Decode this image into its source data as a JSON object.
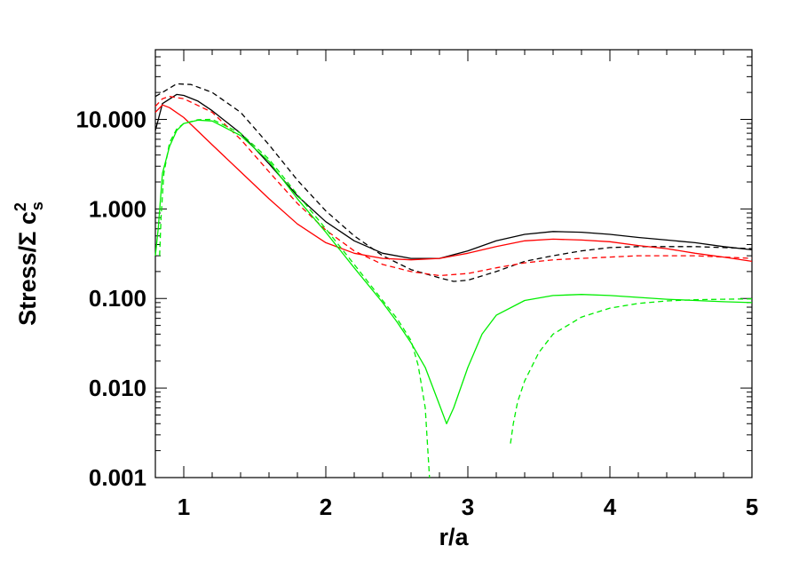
{
  "chart_data": {
    "type": "line",
    "xlabel": "r/a",
    "ylabel": {
      "main": "Stress/Σ c",
      "sup": "2",
      "sub": "s"
    },
    "xlim": [
      0.8,
      5.0
    ],
    "ylim": [
      0.001,
      60
    ],
    "yscale": "log",
    "grid": false,
    "x_ticks": [
      1,
      2,
      3,
      4,
      5
    ],
    "x_tick_labels": [
      "1",
      "2",
      "3",
      "4",
      "5"
    ],
    "y_ticks": [
      0.001,
      0.01,
      0.1,
      1,
      10
    ],
    "y_tick_labels": [
      "0.001",
      "0.010",
      "0.100",
      "1.000",
      "10.000"
    ],
    "series": [
      {
        "color": "#000000",
        "dash": "solid",
        "points": [
          [
            0.8,
            7.5
          ],
          [
            0.85,
            15
          ],
          [
            0.95,
            19
          ],
          [
            1.0,
            18.5
          ],
          [
            1.1,
            16
          ],
          [
            1.2,
            12.5
          ],
          [
            1.4,
            7
          ],
          [
            1.6,
            3.2
          ],
          [
            1.8,
            1.4
          ],
          [
            2.0,
            0.72
          ],
          [
            2.2,
            0.44
          ],
          [
            2.4,
            0.32
          ],
          [
            2.6,
            0.28
          ],
          [
            2.8,
            0.28
          ],
          [
            3.0,
            0.34
          ],
          [
            3.2,
            0.44
          ],
          [
            3.4,
            0.52
          ],
          [
            3.6,
            0.56
          ],
          [
            3.8,
            0.55
          ],
          [
            4.0,
            0.52
          ],
          [
            4.2,
            0.48
          ],
          [
            4.4,
            0.45
          ],
          [
            4.6,
            0.42
          ],
          [
            4.8,
            0.38
          ],
          [
            5.0,
            0.35
          ]
        ]
      },
      {
        "color": "#000000",
        "dash": "dashed",
        "points": [
          [
            0.8,
            18
          ],
          [
            0.85,
            20
          ],
          [
            0.95,
            25
          ],
          [
            1.05,
            24.5
          ],
          [
            1.2,
            20
          ],
          [
            1.4,
            12
          ],
          [
            1.6,
            5.2
          ],
          [
            1.8,
            2.1
          ],
          [
            2.0,
            0.95
          ],
          [
            2.2,
            0.5
          ],
          [
            2.4,
            0.3
          ],
          [
            2.6,
            0.21
          ],
          [
            2.8,
            0.17
          ],
          [
            2.9,
            0.155
          ],
          [
            3.0,
            0.16
          ],
          [
            3.2,
            0.2
          ],
          [
            3.4,
            0.26
          ],
          [
            3.6,
            0.3
          ],
          [
            3.8,
            0.34
          ],
          [
            4.0,
            0.37
          ],
          [
            4.2,
            0.38
          ],
          [
            4.4,
            0.38
          ],
          [
            4.6,
            0.38
          ],
          [
            4.8,
            0.37
          ],
          [
            5.0,
            0.36
          ]
        ]
      },
      {
        "color": "#ff0000",
        "dash": "solid",
        "points": [
          [
            0.8,
            12
          ],
          [
            0.85,
            14.5
          ],
          [
            0.9,
            13.5
          ],
          [
            1.0,
            10.5
          ],
          [
            1.2,
            5.2
          ],
          [
            1.4,
            2.6
          ],
          [
            1.6,
            1.3
          ],
          [
            1.8,
            0.68
          ],
          [
            2.0,
            0.42
          ],
          [
            2.2,
            0.32
          ],
          [
            2.4,
            0.28
          ],
          [
            2.6,
            0.27
          ],
          [
            2.8,
            0.28
          ],
          [
            3.0,
            0.32
          ],
          [
            3.2,
            0.38
          ],
          [
            3.4,
            0.44
          ],
          [
            3.6,
            0.46
          ],
          [
            3.8,
            0.45
          ],
          [
            4.0,
            0.43
          ],
          [
            4.2,
            0.39
          ],
          [
            4.4,
            0.36
          ],
          [
            4.6,
            0.32
          ],
          [
            4.8,
            0.29
          ],
          [
            5.0,
            0.26
          ]
        ]
      },
      {
        "color": "#ff0000",
        "dash": "dashed",
        "points": [
          [
            0.8,
            14
          ],
          [
            0.85,
            17
          ],
          [
            0.9,
            18
          ],
          [
            1.0,
            17
          ],
          [
            1.2,
            12
          ],
          [
            1.4,
            6
          ],
          [
            1.6,
            2.6
          ],
          [
            1.8,
            1.15
          ],
          [
            2.0,
            0.58
          ],
          [
            2.2,
            0.34
          ],
          [
            2.4,
            0.24
          ],
          [
            2.6,
            0.2
          ],
          [
            2.8,
            0.18
          ],
          [
            3.0,
            0.19
          ],
          [
            3.2,
            0.22
          ],
          [
            3.4,
            0.25
          ],
          [
            3.6,
            0.27
          ],
          [
            3.8,
            0.28
          ],
          [
            4.0,
            0.29
          ],
          [
            4.2,
            0.3
          ],
          [
            4.4,
            0.3
          ],
          [
            4.6,
            0.3
          ],
          [
            4.8,
            0.29
          ],
          [
            5.0,
            0.28
          ]
        ]
      },
      {
        "color": "#00ee00",
        "dash": "solid",
        "points": [
          [
            0.8,
            0.3
          ],
          [
            0.82,
            0.6
          ],
          [
            0.85,
            2.5
          ],
          [
            0.9,
            5
          ],
          [
            0.95,
            7.5
          ],
          [
            1.0,
            9
          ],
          [
            1.1,
            9.8
          ],
          [
            1.2,
            9.6
          ],
          [
            1.4,
            6.6
          ],
          [
            1.6,
            3.4
          ],
          [
            1.8,
            1.3
          ],
          [
            2.0,
            0.55
          ],
          [
            2.2,
            0.22
          ],
          [
            2.4,
            0.09
          ],
          [
            2.5,
            0.055
          ],
          [
            2.6,
            0.032
          ],
          [
            2.7,
            0.017
          ],
          [
            2.8,
            0.0065
          ],
          [
            2.85,
            0.004
          ],
          [
            2.9,
            0.006
          ],
          [
            3.0,
            0.017
          ],
          [
            3.1,
            0.04
          ],
          [
            3.2,
            0.065
          ],
          [
            3.4,
            0.095
          ],
          [
            3.6,
            0.108
          ],
          [
            3.8,
            0.111
          ],
          [
            4.0,
            0.108
          ],
          [
            4.2,
            0.103
          ],
          [
            4.4,
            0.098
          ],
          [
            4.6,
            0.095
          ],
          [
            4.8,
            0.092
          ],
          [
            5.0,
            0.09
          ]
        ]
      },
      {
        "color": "#00ee00",
        "dash": "dashed",
        "points": [
          [
            0.83,
            0.3
          ],
          [
            0.84,
            0.8
          ],
          [
            0.86,
            2.5
          ],
          [
            0.9,
            5.5
          ],
          [
            0.95,
            7.8
          ],
          [
            1.0,
            9
          ],
          [
            1.1,
            9.9
          ],
          [
            1.2,
            10
          ],
          [
            1.4,
            7
          ],
          [
            1.6,
            3.6
          ],
          [
            1.8,
            1.45
          ],
          [
            2.0,
            0.6
          ],
          [
            2.2,
            0.24
          ],
          [
            2.4,
            0.095
          ],
          [
            2.5,
            0.06
          ],
          [
            2.6,
            0.034
          ],
          [
            2.65,
            0.018
          ],
          [
            2.7,
            0.006
          ],
          [
            2.73,
            0.001
          ]
        ]
      },
      {
        "color": "#00ee00",
        "dash": "dashed",
        "points": [
          [
            3.3,
            0.0024
          ],
          [
            3.32,
            0.004
          ],
          [
            3.35,
            0.007
          ],
          [
            3.4,
            0.012
          ],
          [
            3.5,
            0.025
          ],
          [
            3.6,
            0.04
          ],
          [
            3.8,
            0.062
          ],
          [
            4.0,
            0.078
          ],
          [
            4.2,
            0.088
          ],
          [
            4.4,
            0.094
          ],
          [
            4.6,
            0.097
          ],
          [
            4.8,
            0.098
          ],
          [
            5.0,
            0.099
          ]
        ]
      }
    ]
  }
}
